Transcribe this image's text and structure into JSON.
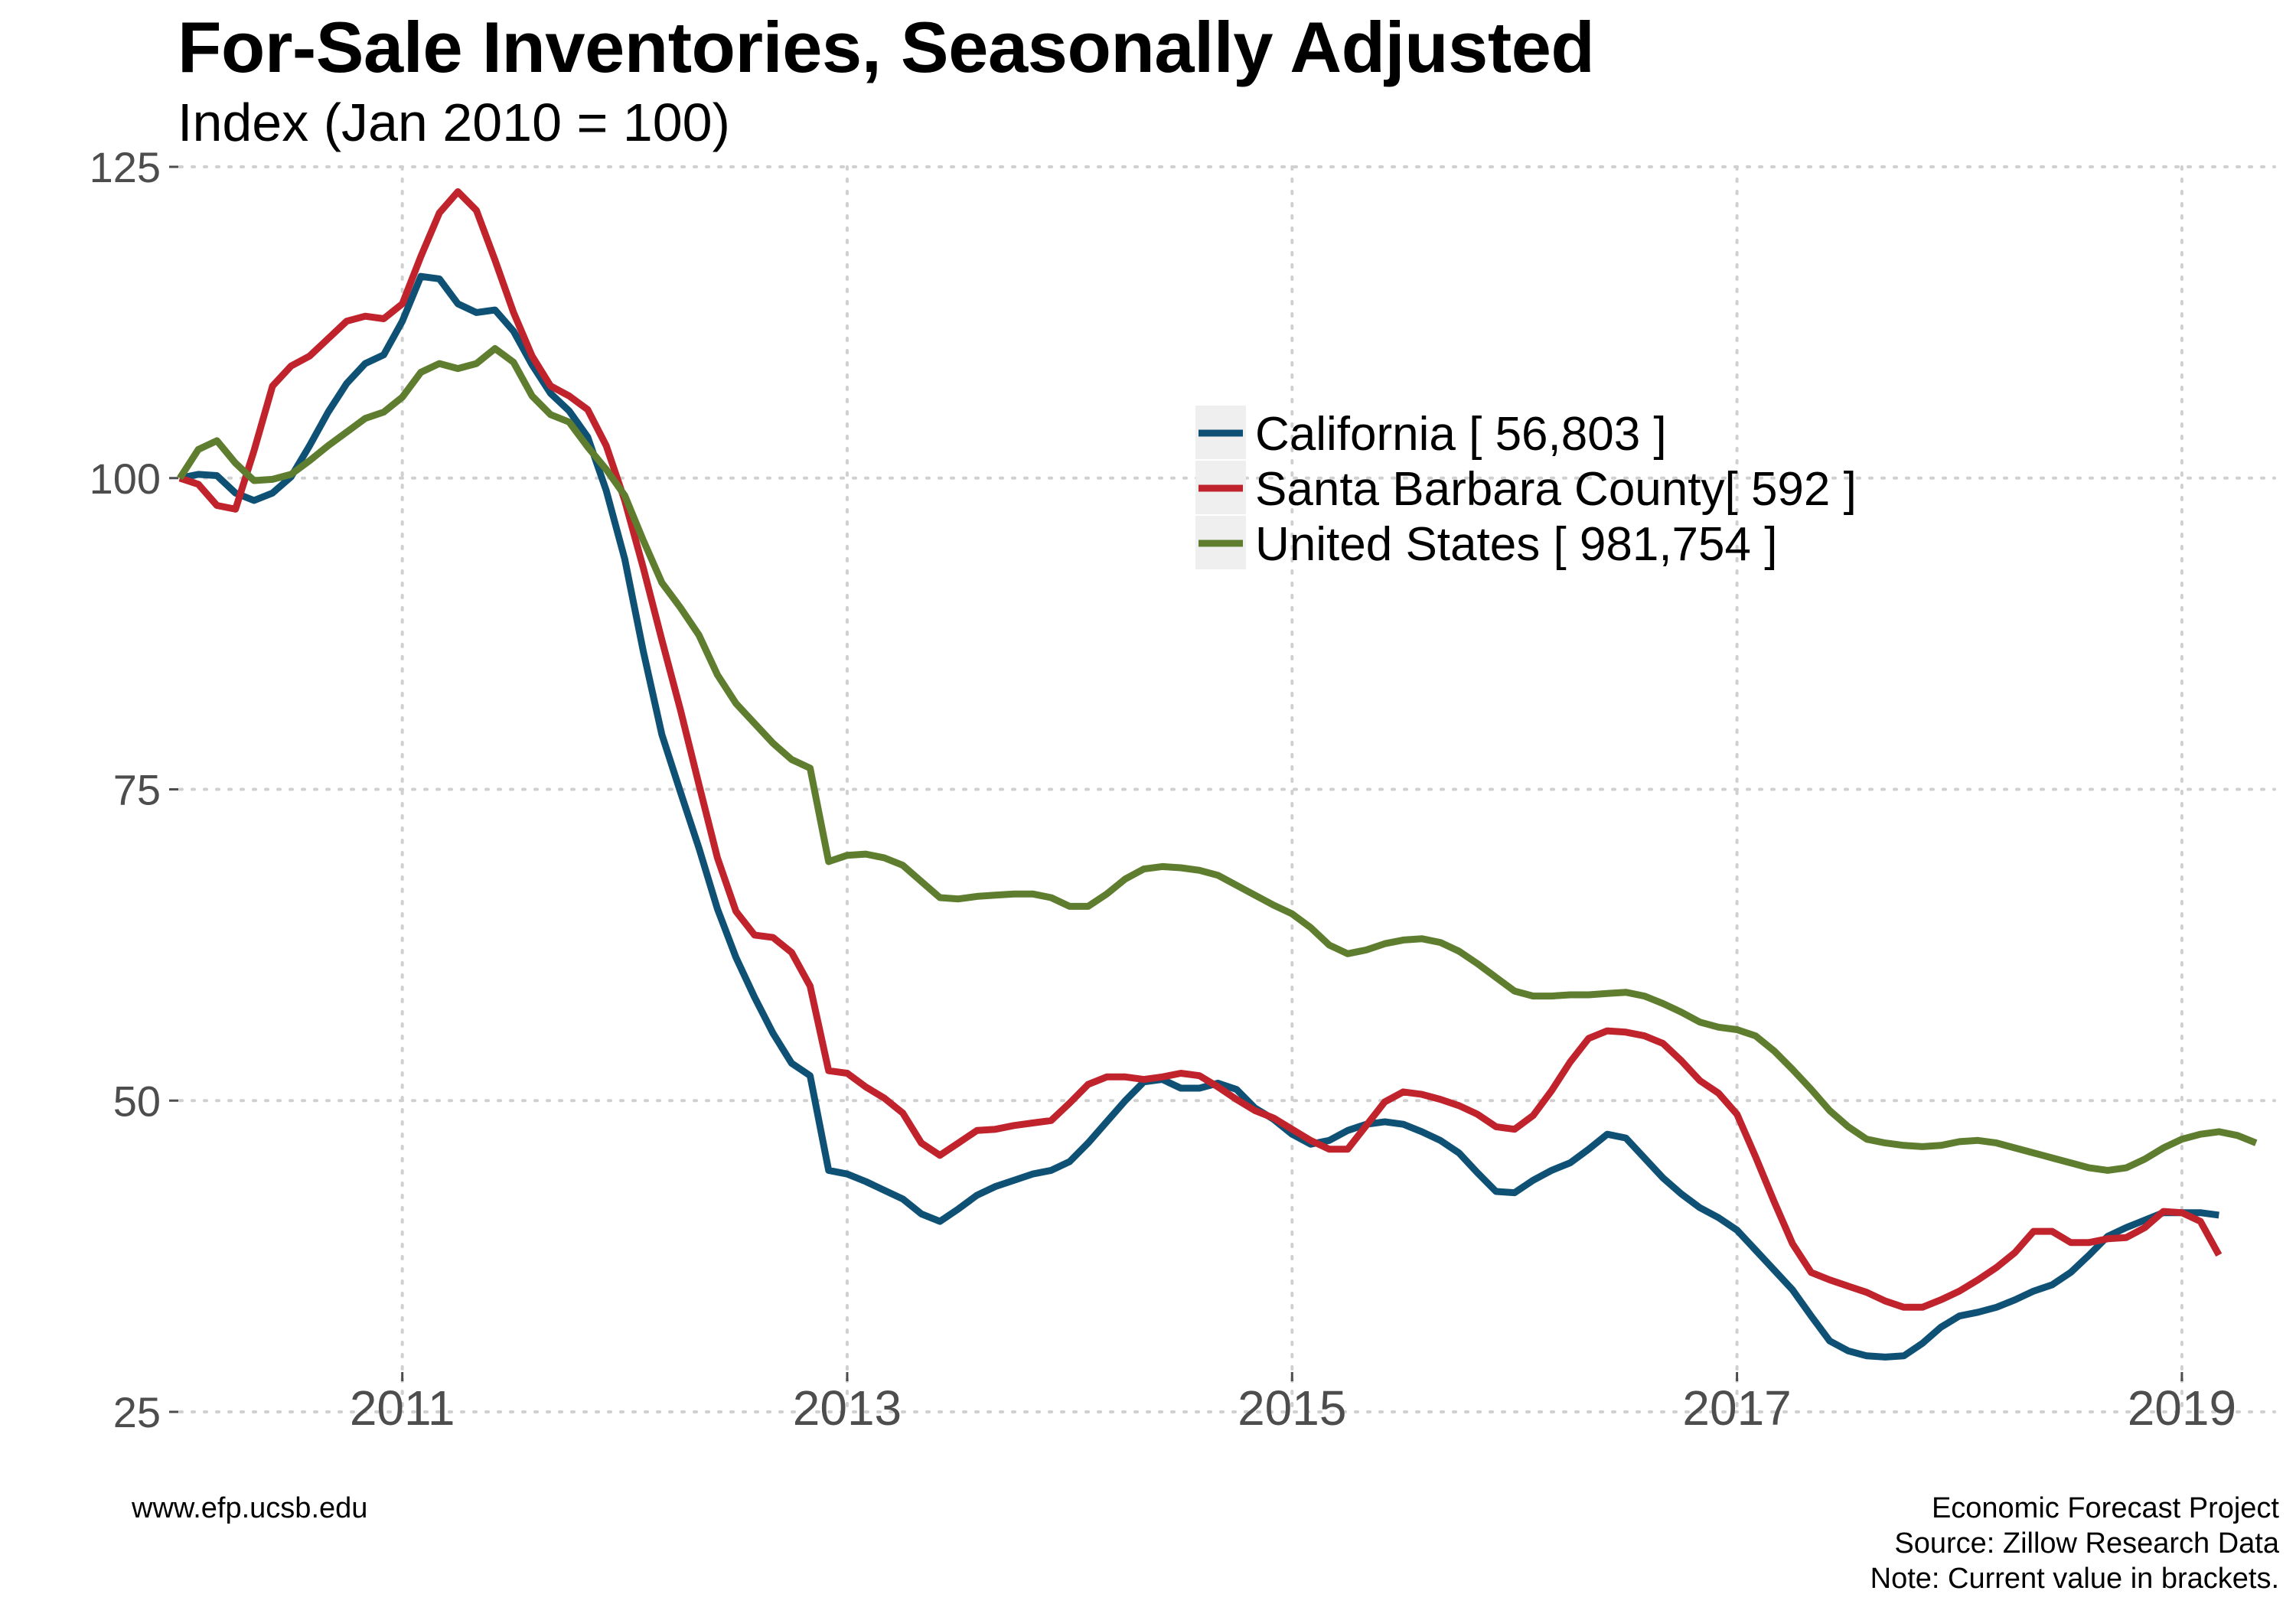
{
  "title": "For-Sale Inventories, Seasonally Adjusted",
  "subtitle": "Index (Jan 2010 = 100)",
  "footer": {
    "left": "www.efp.ucsb.edu",
    "right": [
      "Economic Forecast Project",
      "Source: Zillow Research Data",
      "Note: Current value in brackets."
    ]
  },
  "colors": {
    "California": "#0e5175",
    "Santa Barbara County": "#c0232c",
    "United States": "#5e7d2e",
    "grid": "#d0d0d0",
    "legend_key_bg": "#efefef"
  },
  "chart_data": {
    "type": "line",
    "title": "For-Sale Inventories, Seasonally Adjusted",
    "subtitle": "Index (Jan 2010 = 100)",
    "xlabel": "",
    "ylabel": "",
    "xlim": [
      "2010-01",
      "2019-06"
    ],
    "ylim": [
      25,
      125
    ],
    "yticks": [
      25,
      50,
      75,
      100,
      125
    ],
    "xticks": [
      {
        "value": "2011-01",
        "label": "2011"
      },
      {
        "value": "2013-01",
        "label": "2013"
      },
      {
        "value": "2015-01",
        "label": "2015"
      },
      {
        "value": "2017-01",
        "label": "2017"
      },
      {
        "value": "2019-01",
        "label": "2019"
      }
    ],
    "grid": true,
    "legend": "top-right",
    "start": "2010-01",
    "frequency": "monthly",
    "series": [
      {
        "name": "California",
        "legend_label": "California [ 56,803 ]",
        "values": [
          100,
          100.3,
          100.2,
          98.8,
          98.2,
          98.8,
          100.1,
          102.6,
          105.3,
          107.6,
          109.2,
          109.9,
          112.6,
          116.2,
          116,
          114,
          113.3,
          113.5,
          111.8,
          109.1,
          106.8,
          105.4,
          103.3,
          99,
          93.5,
          86.1,
          79.4,
          74.8,
          70.3,
          65.4,
          61.5,
          58.3,
          55.4,
          53,
          52,
          44.4,
          44.1,
          43.5,
          42.8,
          42.1,
          40.9,
          40.3,
          41.3,
          42.4,
          43.1,
          43.6,
          44.1,
          44.4,
          45.1,
          46.6,
          48.3,
          50,
          51.5,
          51.7,
          51,
          51,
          51.4,
          50.9,
          49.4,
          48.5,
          47.3,
          46.5,
          46.8,
          47.6,
          48.1,
          48.3,
          48.1,
          47.5,
          46.8,
          45.8,
          44.2,
          42.7,
          42.6,
          43.6,
          44.4,
          45,
          46.1,
          47.3,
          47,
          45.4,
          43.8,
          42.5,
          41.4,
          40.6,
          39.6,
          38,
          36.4,
          34.8,
          32.7,
          30.7,
          29.9,
          29.5,
          29.4,
          29.5,
          30.5,
          31.8,
          32.7,
          33,
          33.4,
          34,
          34.7,
          35.2,
          36.2,
          37.6,
          39.1,
          39.8,
          40.4,
          41,
          41,
          41,
          40.8
        ]
      },
      {
        "name": "Santa Barbara County",
        "legend_label": "Santa Barbara County[ 592 ]",
        "values": [
          100,
          99.5,
          97.8,
          97.5,
          102.2,
          107.4,
          109,
          109.8,
          111.2,
          112.6,
          113,
          112.8,
          114,
          117.8,
          121.3,
          123,
          121.5,
          117.5,
          113.3,
          109.8,
          107.4,
          106.6,
          105.5,
          102.6,
          98.2,
          92.8,
          87,
          81.4,
          75.4,
          69.5,
          65.2,
          63.3,
          63.1,
          61.9,
          59.2,
          52.4,
          52.2,
          51.1,
          50.2,
          49,
          46.6,
          45.6,
          46.6,
          47.6,
          47.7,
          48,
          48.2,
          48.4,
          49.8,
          51.3,
          51.9,
          51.9,
          51.7,
          51.9,
          52.2,
          52,
          51.1,
          50.1,
          49.2,
          48.6,
          47.7,
          46.8,
          46.1,
          46.1,
          48,
          49.9,
          50.7,
          50.5,
          50.1,
          49.6,
          48.9,
          47.9,
          47.7,
          48.8,
          50.8,
          53.1,
          55,
          55.6,
          55.5,
          55.2,
          54.6,
          53.2,
          51.6,
          50.6,
          48.9,
          45.5,
          41.9,
          38.5,
          36.2,
          35.6,
          35.1,
          34.6,
          33.9,
          33.4,
          33.4,
          34,
          34.7,
          35.6,
          36.6,
          37.8,
          39.5,
          39.5,
          38.6,
          38.6,
          38.9,
          39,
          39.8,
          41.1,
          41,
          40.3,
          37.6
        ]
      },
      {
        "name": "United States",
        "legend_label": "United States [ 981,754 ]",
        "values": [
          100,
          102.3,
          103,
          101.2,
          99.8,
          99.9,
          100.3,
          101.4,
          102.6,
          103.7,
          104.8,
          105.3,
          106.5,
          108.5,
          109.2,
          108.8,
          109.2,
          110.4,
          109.3,
          106.6,
          105.1,
          104.5,
          102.5,
          100.7,
          98.6,
          95,
          91.6,
          89.6,
          87.4,
          84.2,
          81.9,
          80.3,
          78.7,
          77.4,
          76.7,
          69.2,
          69.7,
          69.8,
          69.5,
          68.9,
          67.6,
          66.3,
          66.2,
          66.4,
          66.5,
          66.6,
          66.6,
          66.3,
          65.6,
          65.6,
          66.6,
          67.8,
          68.6,
          68.8,
          68.7,
          68.5,
          68.1,
          67.3,
          66.5,
          65.7,
          65,
          63.9,
          62.5,
          61.8,
          62.1,
          62.6,
          62.9,
          63,
          62.7,
          62,
          61,
          59.9,
          58.8,
          58.4,
          58.4,
          58.5,
          58.5,
          58.6,
          58.7,
          58.4,
          57.8,
          57.1,
          56.3,
          55.9,
          55.7,
          55.2,
          54,
          52.5,
          50.9,
          49.2,
          47.9,
          46.9,
          46.6,
          46.4,
          46.3,
          46.4,
          46.7,
          46.8,
          46.6,
          46.2,
          45.8,
          45.4,
          45,
          44.6,
          44.4,
          44.6,
          45.3,
          46.2,
          46.9,
          47.3,
          47.5,
          47.2,
          46.6
        ]
      }
    ]
  }
}
